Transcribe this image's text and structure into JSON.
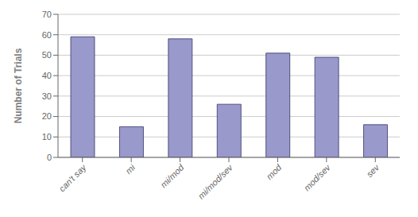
{
  "chart_data": {
    "type": "bar",
    "ylabel": "Number of Trials",
    "categories": [
      "can't say",
      "mi",
      "mi/mod",
      "mi/mod/sev",
      "mod",
      "mod/sev",
      "sev"
    ],
    "values": [
      59,
      15,
      58,
      26,
      51,
      49,
      16
    ],
    "color": "#9999cc",
    "ylim": [
      0,
      70
    ],
    "yticks": [
      0,
      10,
      20,
      30,
      40,
      50,
      60,
      70
    ],
    "grid": true
  }
}
